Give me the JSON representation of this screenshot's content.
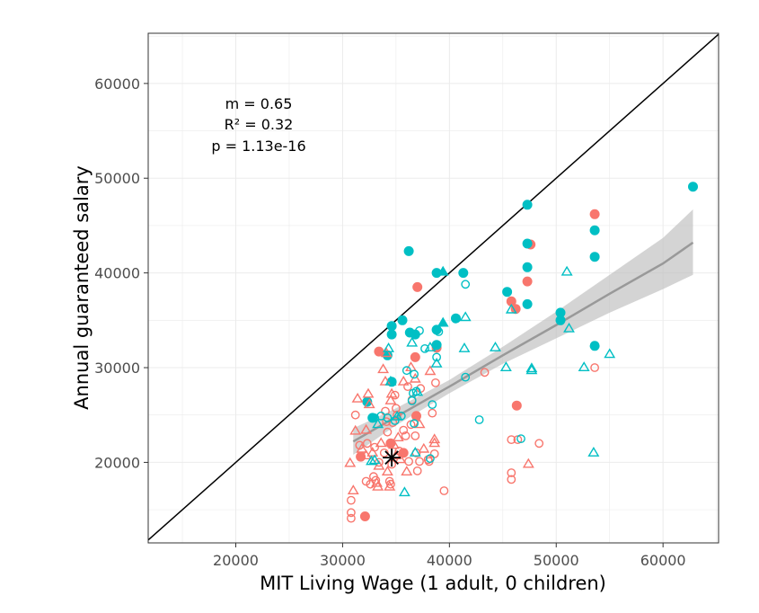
{
  "chart_data": {
    "type": "scatter",
    "xlabel": "MIT Living Wage (1 adult, 0 children)",
    "ylabel": "Annual guaranteed salary",
    "xlim": [
      11800,
      65200
    ],
    "ylim": [
      11500,
      65300
    ],
    "x_ticks": [
      20000,
      30000,
      40000,
      50000,
      60000
    ],
    "y_ticks": [
      20000,
      30000,
      40000,
      50000,
      60000
    ],
    "x_tick_labels": [
      "20000",
      "30000",
      "40000",
      "50000",
      "60000"
    ],
    "y_tick_labels": [
      "20000",
      "30000",
      "40000",
      "50000",
      "60000"
    ],
    "grid": true,
    "annotation": [
      "m = 0.65",
      "R² = 0.32",
      "p = 1.13e-16"
    ],
    "colors": {
      "red": "#F8766D",
      "teal": "#00BFC4",
      "fit": "#999999",
      "band": "#bdbdbd",
      "identity": "#000000"
    },
    "identity_line": {
      "from": [
        11800,
        11800
      ],
      "to": [
        65200,
        65200
      ]
    },
    "regression": {
      "x": [
        31000,
        35000,
        40000,
        45000,
        50000,
        55000,
        60000,
        62800
      ],
      "fit": [
        22200,
        24800,
        28000,
        31300,
        34500,
        37800,
        41000,
        43200
      ],
      "lower": [
        20800,
        23900,
        27300,
        30400,
        33100,
        35800,
        38300,
        39800
      ],
      "upper": [
        23600,
        25700,
        28700,
        32200,
        35900,
        39800,
        43700,
        46700
      ]
    },
    "reference_point": {
      "x": 34600,
      "y": 20500,
      "marker": "asterisk"
    },
    "series": [
      {
        "key": "red_filled_circle",
        "color": "#F8766D",
        "shape": "circle",
        "filled": true,
        "points": [
          [
            32100,
            14300
          ],
          [
            31700,
            20600
          ],
          [
            33400,
            31700
          ],
          [
            34500,
            22000
          ],
          [
            35700,
            21000
          ],
          [
            36800,
            31100
          ],
          [
            36900,
            24900
          ],
          [
            37000,
            38500
          ],
          [
            38800,
            32100
          ],
          [
            45800,
            37000
          ],
          [
            46200,
            36200
          ],
          [
            47300,
            39100
          ],
          [
            47600,
            43000
          ],
          [
            46300,
            26000
          ],
          [
            53600,
            46200
          ]
        ]
      },
      {
        "key": "teal_filled_circle",
        "color": "#00BFC4",
        "shape": "circle",
        "filled": true,
        "points": [
          [
            32300,
            26400
          ],
          [
            32800,
            24700
          ],
          [
            34200,
            31300
          ],
          [
            34600,
            34400
          ],
          [
            34600,
            33500
          ],
          [
            34600,
            28500
          ],
          [
            35600,
            35000
          ],
          [
            36200,
            42300
          ],
          [
            36300,
            33700
          ],
          [
            36800,
            33500
          ],
          [
            38800,
            40000
          ],
          [
            38800,
            32400
          ],
          [
            38800,
            34000
          ],
          [
            40600,
            35200
          ],
          [
            41300,
            40000
          ],
          [
            45400,
            38000
          ],
          [
            47300,
            47200
          ],
          [
            47300,
            43100
          ],
          [
            47300,
            40600
          ],
          [
            47300,
            36700
          ],
          [
            50400,
            35800
          ],
          [
            50400,
            35000
          ],
          [
            53600,
            44500
          ],
          [
            53600,
            41700
          ],
          [
            53600,
            32300
          ],
          [
            62800,
            49100
          ]
        ]
      },
      {
        "key": "teal_filled_triangle",
        "color": "#00BFC4",
        "shape": "triangle",
        "filled": true,
        "points": [
          [
            39400,
            40100
          ],
          [
            39400,
            34700
          ]
        ]
      },
      {
        "key": "red_open_circle",
        "color": "#F8766D",
        "shape": "circle",
        "filled": false,
        "points": [
          [
            30800,
            14100
          ],
          [
            30800,
            14700
          ],
          [
            30800,
            16000
          ],
          [
            31200,
            25000
          ],
          [
            31600,
            21800
          ],
          [
            32200,
            18000
          ],
          [
            32300,
            22000
          ],
          [
            32600,
            17700
          ],
          [
            32900,
            18500
          ],
          [
            33000,
            21600
          ],
          [
            33100,
            18100
          ],
          [
            33400,
            20000
          ],
          [
            33900,
            21000
          ],
          [
            34000,
            25400
          ],
          [
            34100,
            24300
          ],
          [
            34200,
            23200
          ],
          [
            34400,
            18000
          ],
          [
            34500,
            17700
          ],
          [
            34600,
            19800
          ],
          [
            34700,
            24200
          ],
          [
            34900,
            27100
          ],
          [
            35000,
            25700
          ],
          [
            35100,
            25000
          ],
          [
            35300,
            21200
          ],
          [
            35700,
            23400
          ],
          [
            35900,
            22800
          ],
          [
            36100,
            28000
          ],
          [
            36200,
            20100
          ],
          [
            36400,
            24000
          ],
          [
            36500,
            26600
          ],
          [
            36800,
            22800
          ],
          [
            36900,
            21000
          ],
          [
            37000,
            19100
          ],
          [
            37200,
            20100
          ],
          [
            37300,
            27800
          ],
          [
            38000,
            20300
          ],
          [
            38100,
            20100
          ],
          [
            38400,
            25200
          ],
          [
            38600,
            20900
          ],
          [
            38700,
            28400
          ],
          [
            39500,
            17000
          ],
          [
            43300,
            29500
          ],
          [
            45800,
            22400
          ],
          [
            45800,
            18900
          ],
          [
            45800,
            18200
          ],
          [
            46400,
            22400
          ],
          [
            48400,
            22000
          ],
          [
            53600,
            30000
          ]
        ]
      },
      {
        "key": "red_open_triangle",
        "color": "#F8766D",
        "shape": "triangle",
        "filled": false,
        "points": [
          [
            30700,
            19900
          ],
          [
            31000,
            17000
          ],
          [
            31200,
            23300
          ],
          [
            31400,
            26700
          ],
          [
            31800,
            21400
          ],
          [
            32200,
            20700
          ],
          [
            32200,
            23400
          ],
          [
            32400,
            27200
          ],
          [
            32500,
            26100
          ],
          [
            32800,
            21000
          ],
          [
            33200,
            17800
          ],
          [
            33300,
            17400
          ],
          [
            33400,
            19600
          ],
          [
            33600,
            22000
          ],
          [
            33800,
            29800
          ],
          [
            34000,
            28500
          ],
          [
            34100,
            31500
          ],
          [
            34200,
            19000
          ],
          [
            34400,
            17400
          ],
          [
            34500,
            26500
          ],
          [
            34600,
            27200
          ],
          [
            34800,
            21800
          ],
          [
            35000,
            20700
          ],
          [
            35200,
            22600
          ],
          [
            35400,
            20300
          ],
          [
            35700,
            28500
          ],
          [
            36000,
            19000
          ],
          [
            36400,
            30000
          ],
          [
            36800,
            28800
          ],
          [
            37200,
            24000
          ],
          [
            37600,
            21400
          ],
          [
            38200,
            29600
          ],
          [
            38600,
            22400
          ],
          [
            38600,
            22000
          ],
          [
            47400,
            19800
          ]
        ]
      },
      {
        "key": "teal_open_circle",
        "color": "#00BFC4",
        "shape": "circle",
        "filled": false,
        "points": [
          [
            33000,
            24700
          ],
          [
            33600,
            24900
          ],
          [
            34200,
            24700
          ],
          [
            34900,
            24400
          ],
          [
            35500,
            24900
          ],
          [
            36000,
            29700
          ],
          [
            36500,
            26500
          ],
          [
            36600,
            27300
          ],
          [
            36700,
            29300
          ],
          [
            36700,
            24100
          ],
          [
            36900,
            27500
          ],
          [
            37200,
            33900
          ],
          [
            37700,
            32000
          ],
          [
            38200,
            20400
          ],
          [
            38400,
            26100
          ],
          [
            38800,
            31100
          ],
          [
            39000,
            33800
          ],
          [
            41500,
            38800
          ],
          [
            41500,
            29000
          ],
          [
            42800,
            24500
          ],
          [
            46700,
            22500
          ]
        ]
      },
      {
        "key": "teal_open_triangle",
        "color": "#00BFC4",
        "shape": "triangle",
        "filled": false,
        "points": [
          [
            32700,
            20100
          ],
          [
            33000,
            20200
          ],
          [
            33300,
            24000
          ],
          [
            34300,
            32000
          ],
          [
            34500,
            28500
          ],
          [
            35100,
            24800
          ],
          [
            35800,
            16800
          ],
          [
            36500,
            32600
          ],
          [
            36800,
            21000
          ],
          [
            37000,
            27400
          ],
          [
            38200,
            32100
          ],
          [
            38800,
            30400
          ],
          [
            41400,
            32000
          ],
          [
            41500,
            35300
          ],
          [
            44300,
            32100
          ],
          [
            45300,
            30000
          ],
          [
            45800,
            36100
          ],
          [
            47700,
            29700
          ],
          [
            47700,
            29900
          ],
          [
            51000,
            40100
          ],
          [
            51200,
            34100
          ],
          [
            52600,
            30000
          ],
          [
            53500,
            21000
          ],
          [
            55000,
            31400
          ]
        ]
      }
    ]
  }
}
